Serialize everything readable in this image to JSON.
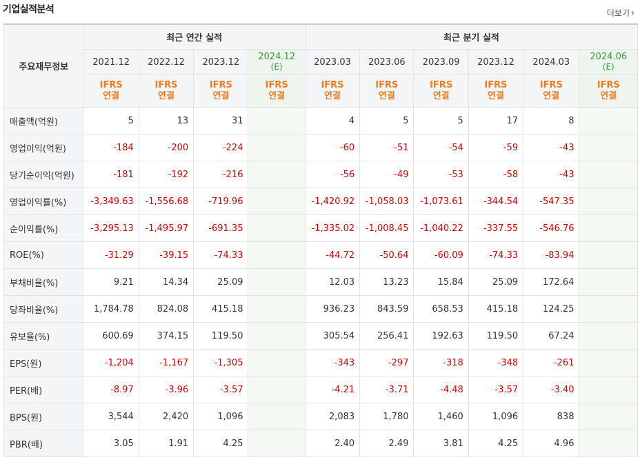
{
  "title": "기업실적분석",
  "more_label": "더보기",
  "header": {
    "row_label": "주요재무정보",
    "annual_group": "최근 연간 실적",
    "quarter_group": "최근 분기 실적",
    "periods": [
      {
        "label": "2021.12",
        "sub": ""
      },
      {
        "label": "2022.12",
        "sub": ""
      },
      {
        "label": "2023.12",
        "sub": ""
      },
      {
        "label": "2024.12",
        "sub": "(E)"
      },
      {
        "label": "2023.03",
        "sub": ""
      },
      {
        "label": "2023.06",
        "sub": ""
      },
      {
        "label": "2023.09",
        "sub": ""
      },
      {
        "label": "2023.12",
        "sub": ""
      },
      {
        "label": "2024.03",
        "sub": ""
      },
      {
        "label": "2024.06",
        "sub": "(E)"
      }
    ],
    "ifrs_line1": "IFRS",
    "ifrs_line2": "연결"
  },
  "rows": [
    {
      "label": "매출액(억원)",
      "values": [
        "5",
        "13",
        "31",
        "",
        "4",
        "5",
        "5",
        "17",
        "8",
        ""
      ]
    },
    {
      "label": "영업이익(억원)",
      "values": [
        "-184",
        "-200",
        "-224",
        "",
        "-60",
        "-51",
        "-54",
        "-59",
        "-43",
        ""
      ]
    },
    {
      "label": "당기순이익(억원)",
      "values": [
        "-181",
        "-192",
        "-216",
        "",
        "-56",
        "-49",
        "-53",
        "-58",
        "-43",
        ""
      ]
    },
    {
      "label": "영업이익률(%)",
      "values": [
        "-3,349.63",
        "-1,556.68",
        "-719.96",
        "",
        "-1,420.92",
        "-1,058.03",
        "-1,073.61",
        "-344.54",
        "-547.35",
        ""
      ]
    },
    {
      "label": "순이익률(%)",
      "values": [
        "-3,295.13",
        "-1,495.97",
        "-691.35",
        "",
        "-1,335.02",
        "-1,008.45",
        "-1,040.22",
        "-337.55",
        "-546.76",
        ""
      ]
    },
    {
      "label": "ROE(%)",
      "values": [
        "-31.29",
        "-39.15",
        "-74.33",
        "",
        "-44.72",
        "-50.64",
        "-60.09",
        "-74.33",
        "-83.94",
        ""
      ]
    },
    {
      "label": "부채비율(%)",
      "values": [
        "9.21",
        "14.34",
        "25.09",
        "",
        "12.03",
        "13.23",
        "15.84",
        "25.09",
        "172.64",
        ""
      ]
    },
    {
      "label": "당좌비율(%)",
      "values": [
        "1,784.78",
        "824.08",
        "415.18",
        "",
        "936.23",
        "843.59",
        "658.53",
        "415.18",
        "124.25",
        ""
      ]
    },
    {
      "label": "유보율(%)",
      "values": [
        "600.69",
        "374.15",
        "119.50",
        "",
        "305.54",
        "256.41",
        "192.63",
        "119.50",
        "67.24",
        ""
      ]
    },
    {
      "label": "EPS(원)",
      "values": [
        "-1,204",
        "-1,167",
        "-1,305",
        "",
        "-343",
        "-297",
        "-318",
        "-348",
        "-261",
        ""
      ]
    },
    {
      "label": "PER(배)",
      "values": [
        "-8.97",
        "-3.96",
        "-3.57",
        "",
        "-4.21",
        "-3.71",
        "-4.48",
        "-3.57",
        "-3.40",
        ""
      ]
    },
    {
      "label": "BPS(원)",
      "values": [
        "3,544",
        "2,420",
        "1,096",
        "",
        "2,083",
        "1,780",
        "1,460",
        "1,096",
        "838",
        ""
      ]
    },
    {
      "label": "PBR(배)",
      "values": [
        "3.05",
        "1.91",
        "4.25",
        "",
        "2.40",
        "2.49",
        "3.81",
        "4.25",
        "4.96",
        ""
      ]
    }
  ],
  "colors": {
    "negative": "#d80000",
    "ifrs": "#f27b1f",
    "estimate": "#3a9a3a"
  }
}
